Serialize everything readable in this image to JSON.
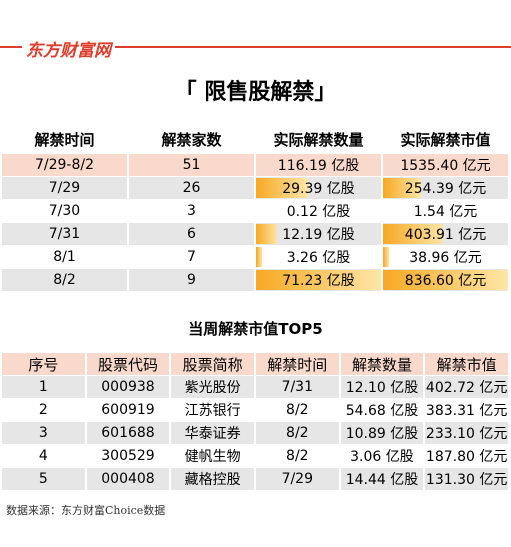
{
  "logo": "东方财富网",
  "title": "「 限售股解禁」",
  "table1": {
    "header": [
      "解禁时间",
      "解禁家数",
      "实际解禁数量",
      "实际解禁市值"
    ],
    "rows": [
      [
        "7/29-8/2",
        "51",
        "116.19 亿股",
        "1535.40 亿元"
      ],
      [
        "7/29",
        "26",
        "29.39 亿股",
        "254.39 亿元"
      ],
      [
        "7/30",
        "3",
        "0.12 亿股",
        "1.54 亿元"
      ],
      [
        "7/31",
        "6",
        "12.19 亿股",
        "403.91 亿元"
      ],
      [
        "8/1",
        "7",
        "3.26 亿股",
        "38.96 亿元"
      ],
      [
        "8/2",
        "9",
        "71.23 亿股",
        "836.60 亿元"
      ]
    ]
  },
  "subtitle": "当周解禁市值TOP5",
  "table2": {
    "header": [
      "序号",
      "股票代码",
      "股票简称",
      "解禁时间",
      "解禁数量",
      "解禁市值"
    ],
    "rows": [
      [
        "1",
        "000938",
        "紫光股份",
        "7/31",
        "12.10 亿股",
        "402.72 亿元"
      ],
      [
        "2",
        "600919",
        "江苏银行",
        "8/2",
        "54.68 亿股",
        "383.31 亿元"
      ],
      [
        "3",
        "601688",
        "华泰证券",
        "8/2",
        "10.89 亿股",
        "233.10 亿元"
      ],
      [
        "4",
        "300529",
        "健帆生物",
        "8/2",
        "3.06 亿股",
        "187.80 亿元"
      ],
      [
        "5",
        "000408",
        "藏格控股",
        "7/29",
        "14.44 亿股",
        "131.30 亿元"
      ]
    ]
  },
  "source": "数据来源：东方财富Choice数据"
}
